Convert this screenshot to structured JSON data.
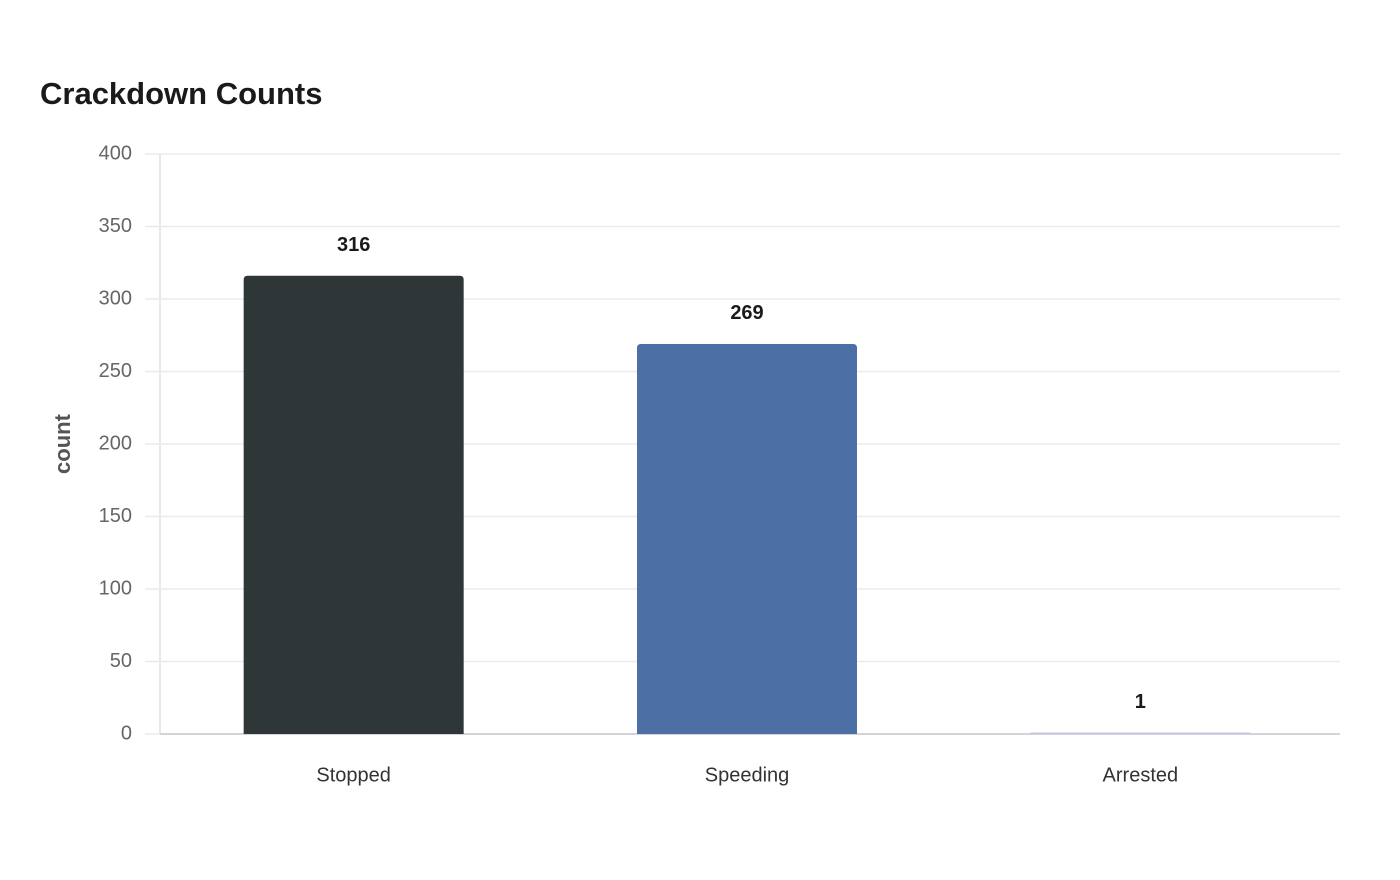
{
  "chart_data": {
    "type": "bar",
    "title": "Crackdown Counts",
    "y_label": "count",
    "categories": [
      "Stopped",
      "Speeding",
      "Arrested"
    ],
    "values": [
      316,
      269,
      1
    ],
    "colors": [
      "#2e3638",
      "#4c6fa5",
      "#c9c3e6"
    ],
    "ylim": [
      0,
      400
    ],
    "yticks": [
      0,
      50,
      100,
      150,
      200,
      250,
      300,
      350,
      400
    ],
    "grid": true
  }
}
